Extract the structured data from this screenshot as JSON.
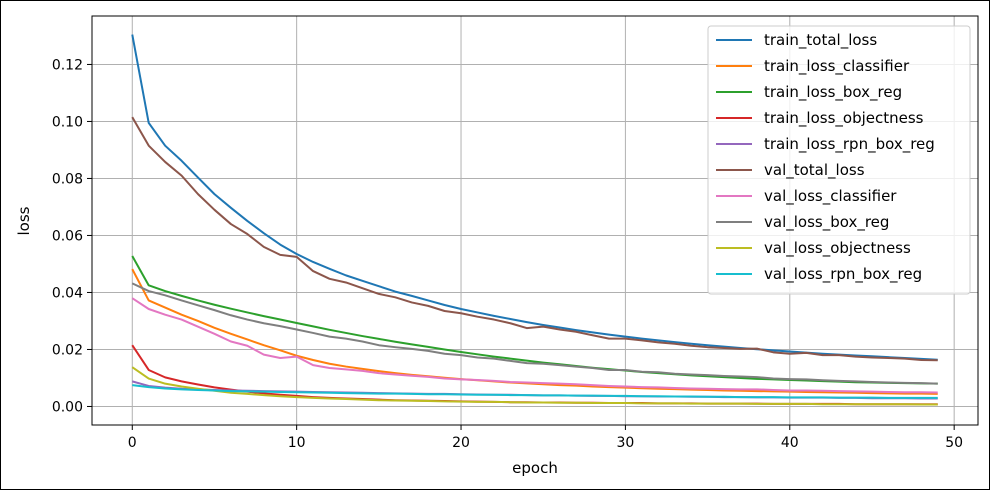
{
  "chart_data": {
    "type": "line",
    "title": "",
    "xlabel": "epoch",
    "ylabel": "loss",
    "xlim": [
      -2.45,
      51.45
    ],
    "ylim": [
      -0.0065,
      0.137
    ],
    "xticks": [
      0,
      10,
      20,
      30,
      40,
      50
    ],
    "xtick_labels": [
      "0",
      "10",
      "20",
      "30",
      "40",
      "50"
    ],
    "yticks": [
      0.0,
      0.02,
      0.04,
      0.06,
      0.08,
      0.1,
      0.12
    ],
    "ytick_labels": [
      "0.00",
      "0.02",
      "0.04",
      "0.06",
      "0.08",
      "0.10",
      "0.12"
    ],
    "grid": true,
    "legend_position": "top-right",
    "x": [
      0,
      1,
      2,
      3,
      4,
      5,
      6,
      7,
      8,
      9,
      10,
      11,
      12,
      13,
      14,
      15,
      16,
      17,
      18,
      19,
      20,
      21,
      22,
      23,
      24,
      25,
      26,
      27,
      28,
      29,
      30,
      31,
      32,
      33,
      34,
      35,
      36,
      37,
      38,
      39,
      40,
      41,
      42,
      43,
      44,
      45,
      46,
      47,
      48,
      49
    ],
    "series": [
      {
        "name": "train_total_loss",
        "color": "#1f77b4",
        "values": [
          0.1305,
          0.0995,
          0.0915,
          0.0862,
          0.0803,
          0.0745,
          0.0697,
          0.0651,
          0.0608,
          0.0568,
          0.0535,
          0.0507,
          0.0483,
          0.046,
          0.0441,
          0.0422,
          0.0403,
          0.0388,
          0.0372,
          0.0356,
          0.0342,
          0.033,
          0.0318,
          0.0307,
          0.0296,
          0.0286,
          0.0277,
          0.0268,
          0.026,
          0.0252,
          0.0245,
          0.0238,
          0.0232,
          0.0226,
          0.022,
          0.0215,
          0.021,
          0.0205,
          0.0201,
          0.0197,
          0.0193,
          0.0189,
          0.0185,
          0.0182,
          0.0179,
          0.0176,
          0.0173,
          0.017,
          0.0167,
          0.0164
        ]
      },
      {
        "name": "train_loss_classifier",
        "color": "#ff7f0e",
        "values": [
          0.0482,
          0.0372,
          0.0347,
          0.0322,
          0.03,
          0.0276,
          0.0255,
          0.0235,
          0.0215,
          0.0197,
          0.0178,
          0.0163,
          0.015,
          0.014,
          0.0132,
          0.0124,
          0.0117,
          0.0111,
          0.0106,
          0.0101,
          0.0096,
          0.0092,
          0.0088,
          0.0084,
          0.0081,
          0.0078,
          0.0075,
          0.0073,
          0.007,
          0.0068,
          0.0066,
          0.0064,
          0.0062,
          0.0061,
          0.0059,
          0.0058,
          0.0056,
          0.0055,
          0.0054,
          0.0053,
          0.0052,
          0.0051,
          0.005,
          0.0049,
          0.0048,
          0.0047,
          0.0046,
          0.0045,
          0.0045,
          0.0044
        ]
      },
      {
        "name": "train_loss_box_reg",
        "color": "#2ca02c",
        "values": [
          0.0528,
          0.0425,
          0.0405,
          0.0388,
          0.0372,
          0.0357,
          0.0343,
          0.033,
          0.0317,
          0.0305,
          0.0293,
          0.0281,
          0.0269,
          0.0258,
          0.0247,
          0.0237,
          0.0227,
          0.0218,
          0.0209,
          0.02,
          0.0191,
          0.0183,
          0.0175,
          0.0168,
          0.0161,
          0.0154,
          0.0148,
          0.0142,
          0.0136,
          0.0131,
          0.0126,
          0.0121,
          0.0117,
          0.0113,
          0.0109,
          0.0106,
          0.0103,
          0.01,
          0.0097,
          0.0095,
          0.0093,
          0.0091,
          0.0089,
          0.0087,
          0.0085,
          0.0084,
          0.0083,
          0.0082,
          0.0081,
          0.008
        ]
      },
      {
        "name": "train_loss_objectness",
        "color": "#d62728",
        "values": [
          0.0215,
          0.0128,
          0.0102,
          0.0088,
          0.0077,
          0.0067,
          0.0059,
          0.0052,
          0.0046,
          0.0041,
          0.0037,
          0.0033,
          0.003,
          0.0028,
          0.0026,
          0.0024,
          0.0022,
          0.0021,
          0.002,
          0.0019,
          0.0018,
          0.0017,
          0.0016,
          0.0015,
          0.0015,
          0.0014,
          0.0014,
          0.0013,
          0.0013,
          0.0012,
          0.0012,
          0.0012,
          0.0011,
          0.0011,
          0.0011,
          0.001,
          0.001,
          0.001,
          0.001,
          0.0009,
          0.0009,
          0.0009,
          0.0009,
          0.0009,
          0.0008,
          0.0008,
          0.0008,
          0.0008,
          0.0008,
          0.0008
        ]
      },
      {
        "name": "train_loss_rpn_box_reg",
        "color": "#9467bd",
        "values": [
          0.0088,
          0.0072,
          0.0066,
          0.0062,
          0.006,
          0.0058,
          0.0056,
          0.0055,
          0.0054,
          0.0053,
          0.0052,
          0.0051,
          0.005,
          0.0049,
          0.0048,
          0.0047,
          0.0046,
          0.0045,
          0.0044,
          0.0044,
          0.0043,
          0.0042,
          0.0041,
          0.0041,
          0.004,
          0.0039,
          0.0039,
          0.0038,
          0.0037,
          0.0037,
          0.0036,
          0.0036,
          0.0035,
          0.0035,
          0.0034,
          0.0034,
          0.0033,
          0.0033,
          0.0032,
          0.0032,
          0.0031,
          0.0031,
          0.0031,
          0.003,
          0.003,
          0.0029,
          0.0029,
          0.0029,
          0.0028,
          0.0028
        ]
      },
      {
        "name": "val_total_loss",
        "color": "#8c564b",
        "values": [
          0.1015,
          0.0915,
          0.0858,
          0.081,
          0.0745,
          0.069,
          0.064,
          0.0605,
          0.056,
          0.0532,
          0.0525,
          0.0475,
          0.0448,
          0.0435,
          0.0415,
          0.0395,
          0.0383,
          0.0365,
          0.0353,
          0.0335,
          0.0327,
          0.0315,
          0.0305,
          0.0292,
          0.0275,
          0.028,
          0.027,
          0.0262,
          0.025,
          0.0238,
          0.0238,
          0.0232,
          0.0225,
          0.022,
          0.0213,
          0.0208,
          0.0205,
          0.0202,
          0.0203,
          0.019,
          0.0185,
          0.0188,
          0.018,
          0.018,
          0.0175,
          0.0172,
          0.017,
          0.0168,
          0.0163,
          0.0162
        ]
      },
      {
        "name": "val_loss_classifier",
        "color": "#e377c2",
        "values": [
          0.038,
          0.0342,
          0.0322,
          0.0305,
          0.028,
          0.0255,
          0.0228,
          0.0213,
          0.0182,
          0.017,
          0.0175,
          0.0145,
          0.0135,
          0.013,
          0.0125,
          0.0117,
          0.0112,
          0.0108,
          0.0104,
          0.0098,
          0.0095,
          0.0093,
          0.009,
          0.0086,
          0.0084,
          0.0082,
          0.008,
          0.0078,
          0.0075,
          0.0072,
          0.007,
          0.0068,
          0.0067,
          0.0065,
          0.0063,
          0.0062,
          0.0061,
          0.006,
          0.006,
          0.0058,
          0.0056,
          0.0056,
          0.0055,
          0.0054,
          0.0053,
          0.0052,
          0.0051,
          0.005,
          0.005,
          0.0049
        ]
      },
      {
        "name": "val_loss_box_reg",
        "color": "#7f7f7f",
        "values": [
          0.0432,
          0.0405,
          0.039,
          0.0372,
          0.0355,
          0.0338,
          0.032,
          0.0305,
          0.0292,
          0.0282,
          0.027,
          0.0258,
          0.0245,
          0.0238,
          0.0228,
          0.0215,
          0.0208,
          0.0202,
          0.0195,
          0.0185,
          0.018,
          0.0172,
          0.0168,
          0.016,
          0.0152,
          0.015,
          0.0145,
          0.014,
          0.0135,
          0.0128,
          0.0128,
          0.0122,
          0.012,
          0.0115,
          0.0112,
          0.011,
          0.0107,
          0.0105,
          0.0103,
          0.0098,
          0.0096,
          0.0095,
          0.0092,
          0.009,
          0.0088,
          0.0086,
          0.0084,
          0.0083,
          0.0082,
          0.008
        ]
      },
      {
        "name": "val_loss_objectness",
        "color": "#bcbd22",
        "values": [
          0.0138,
          0.0098,
          0.008,
          0.007,
          0.0062,
          0.0055,
          0.0048,
          0.0044,
          0.004,
          0.0036,
          0.0033,
          0.003,
          0.0028,
          0.0026,
          0.0024,
          0.0022,
          0.0021,
          0.002,
          0.0019,
          0.0018,
          0.0017,
          0.0016,
          0.0016,
          0.0015,
          0.0014,
          0.0014,
          0.0013,
          0.0013,
          0.0012,
          0.0012,
          0.0012,
          0.0011,
          0.0011,
          0.0011,
          0.001,
          0.001,
          0.001,
          0.001,
          0.0009,
          0.0009,
          0.0009,
          0.0009,
          0.0008,
          0.0008,
          0.0008,
          0.0008,
          0.0008,
          0.0008,
          0.0007,
          0.0007
        ]
      },
      {
        "name": "val_loss_rpn_box_reg",
        "color": "#17becf",
        "values": [
          0.0075,
          0.0068,
          0.0063,
          0.006,
          0.0058,
          0.0056,
          0.0054,
          0.0053,
          0.0052,
          0.0051,
          0.005,
          0.0049,
          0.0048,
          0.0047,
          0.0046,
          0.0045,
          0.0045,
          0.0044,
          0.0043,
          0.0043,
          0.0042,
          0.0041,
          0.0041,
          0.004,
          0.004,
          0.0039,
          0.0039,
          0.0038,
          0.0038,
          0.0037,
          0.0037,
          0.0036,
          0.0036,
          0.0035,
          0.0035,
          0.0034,
          0.0034,
          0.0033,
          0.0033,
          0.0033,
          0.0032,
          0.0032,
          0.0032,
          0.0031,
          0.0031,
          0.0031,
          0.003,
          0.003,
          0.003,
          0.003
        ]
      }
    ]
  }
}
